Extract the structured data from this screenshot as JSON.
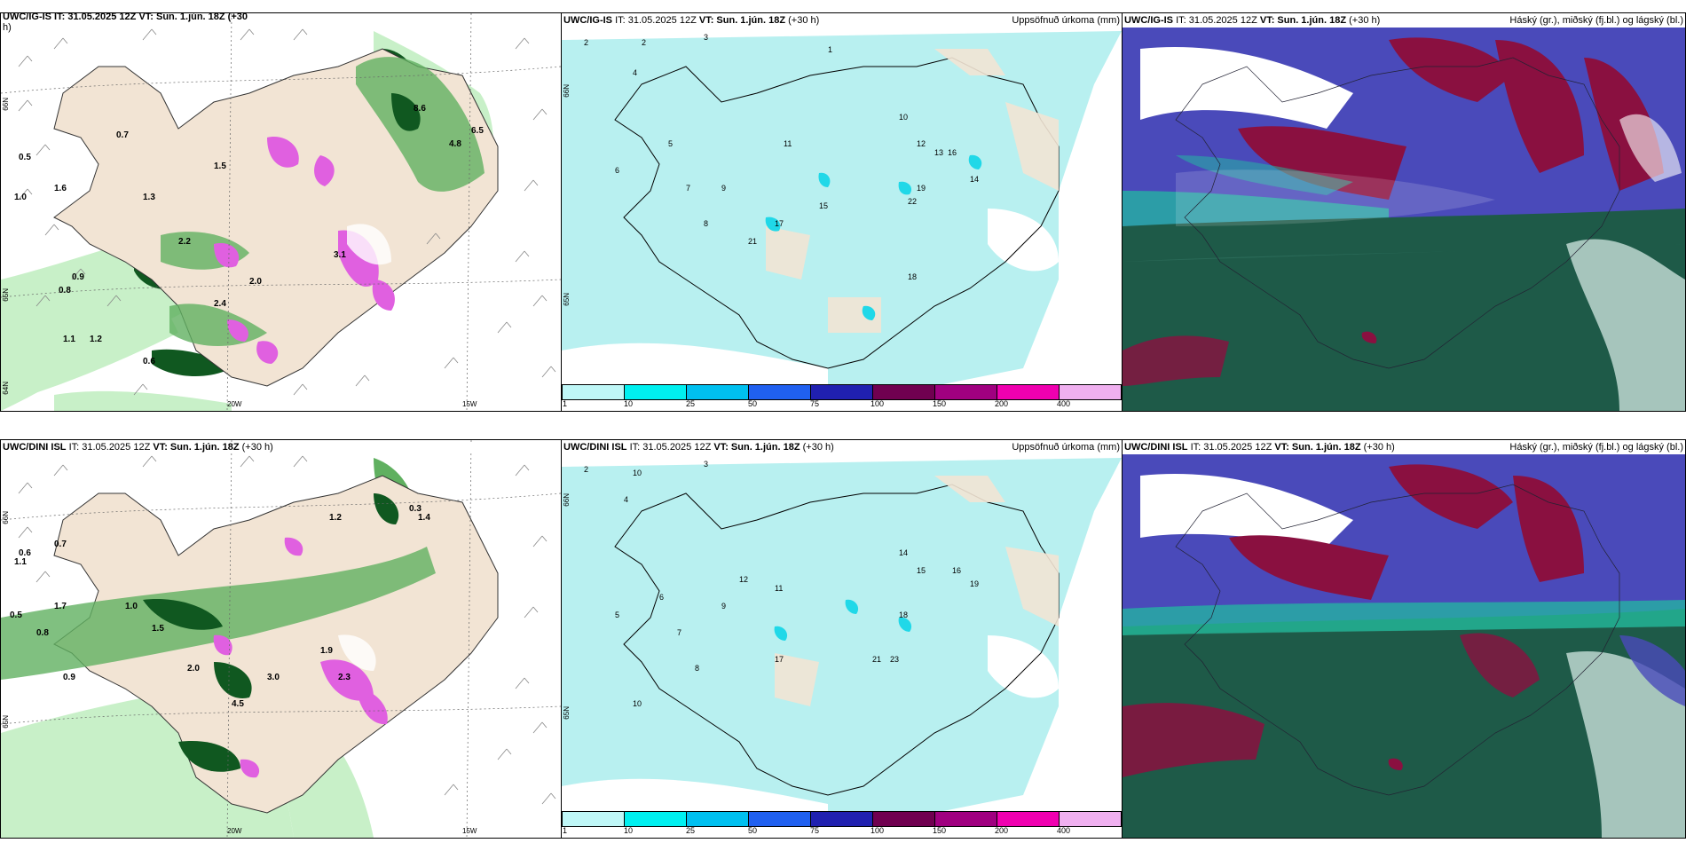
{
  "top_row": {
    "left_panel": {
      "header_clipped": "UWC/IG-IS IT: 31.05.2025 12Z VT: Sun. 1.jún. 18Z (+30",
      "header_overflow": "h)",
      "lat_labels": [
        "66N",
        "65N",
        "64N"
      ],
      "lon_labels": [
        "20W",
        "15W"
      ]
    },
    "mid_panel": {
      "model": "UWC/IG-IS",
      "it": "IT: 31.05.2025 12Z",
      "vt_prefix": "VT:",
      "vt": "Sun. 1.jún. 18Z",
      "lead": "(+30 h)",
      "title_right": "Uppsöfnuð úrkoma (mm)",
      "lat_labels": [
        "66N",
        "65N"
      ]
    },
    "right_panel": {
      "model": "UWC/IG-IS",
      "it": "IT: 31.05.2025 12Z",
      "vt_prefix": "VT:",
      "vt": "Sun. 1.jún. 18Z",
      "lead": "(+30 h)",
      "title_right": "Háský (gr.), miðský (fj.bl.) og lágský (bl.)"
    }
  },
  "bottom_row": {
    "left_panel": {
      "model": "UWC/DINI ISL",
      "it": "IT: 31.05.2025 12Z",
      "vt_prefix": "VT:",
      "vt": "Sun. 1.jún. 18Z",
      "lead": "(+30 h)",
      "lat_labels": [
        "66N",
        "65N"
      ],
      "lon_labels": [
        "20W",
        "15W"
      ]
    },
    "mid_panel": {
      "model": "UWC/DINI ISL",
      "it": "IT: 31.05.2025 12Z",
      "vt_prefix": "VT:",
      "vt": "Sun. 1.jún. 18Z",
      "lead": "(+30 h)",
      "title_right": "Uppsöfnuð úrkoma (mm)",
      "lat_labels": [
        "66N",
        "65N"
      ]
    },
    "right_panel": {
      "model": "UWC/DINI ISL",
      "it": "IT: 31.05.2025 12Z",
      "vt_prefix": "VT:",
      "vt": "Sun. 1.jún. 18Z",
      "lead": "(+30 h)",
      "title_right": "Háský (gr.), miðský (fj.bl.) og lágský (bl.)"
    }
  },
  "colorbar": {
    "labels": [
      "1",
      "10",
      "25",
      "50",
      "75",
      "100",
      "150",
      "200",
      "400"
    ],
    "colors": [
      "#bff7f7",
      "#00f0f0",
      "#00c0f0",
      "#2060f0",
      "#2020b0",
      "#700050",
      "#a00080",
      "#f000b0",
      "#f0b0f0"
    ]
  },
  "colors": {
    "land": "#f2e4d4",
    "precip_light": "#b8f0f0",
    "precip_cyan": "#20d8e8",
    "green_light": "#c8f0c8",
    "green_mid": "#60b060",
    "green_dark": "#105820",
    "magenta": "#e060e0",
    "cloud_high": "#1e5a48",
    "cloud_mid": "#8a1040",
    "cloud_low": "#4a4aba",
    "cloud_teal": "#20c0a0"
  },
  "precip_labels_top": [
    "2",
    "2",
    "3",
    "1",
    "4",
    "5",
    "6",
    "7",
    "8",
    "9",
    "10",
    "11",
    "12",
    "13",
    "14",
    "15",
    "16",
    "17",
    "18",
    "19",
    "21",
    "22"
  ],
  "precip_labels_bottom": [
    "2",
    "10",
    "3",
    "4",
    "5",
    "6",
    "7",
    "8",
    "9",
    "10",
    "11",
    "12",
    "14",
    "15",
    "16",
    "17",
    "18",
    "19",
    "21",
    "23"
  ],
  "rain_labels_top": [
    "0.5",
    "1.0",
    "0.7",
    "0.8",
    "0.9",
    "1.1",
    "1.2",
    "1.3",
    "1.5",
    "1.6",
    "2.0",
    "2.2",
    "2.4",
    "3.1",
    "0.6",
    "4.8",
    "6.5",
    "8.6"
  ],
  "rain_labels_bottom": [
    "0.5",
    "0.6",
    "0.7",
    "0.8",
    "0.9",
    "1.0",
    "1.1",
    "1.2",
    "1.4",
    "1.5",
    "1.7",
    "1.9",
    "2.0",
    "2.3",
    "3.0",
    "4.5",
    "0.3"
  ]
}
